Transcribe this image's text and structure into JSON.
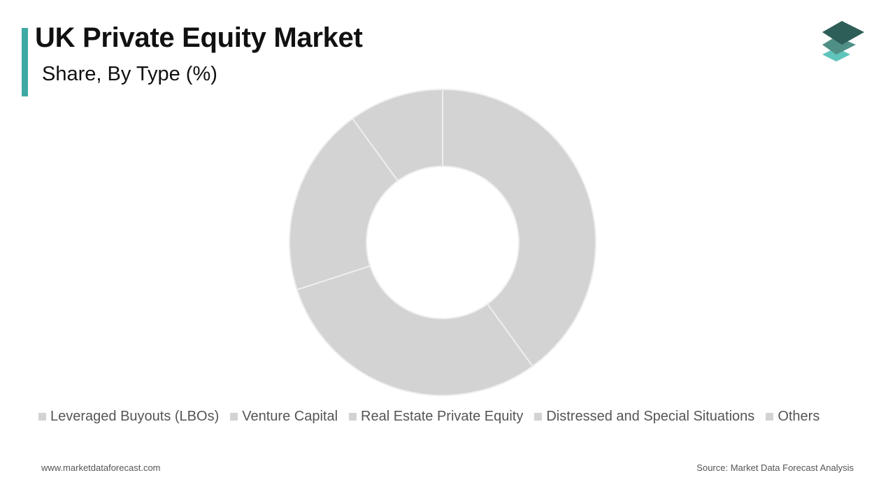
{
  "header": {
    "title": "UK Private Equity Market",
    "subtitle": "Share, By Type (%)",
    "accent_color": "#3fa9a4"
  },
  "logo": {
    "icon": "stacked-layers-logo",
    "colors": [
      "#2e5e58",
      "#4f8f86",
      "#5fc4bb"
    ]
  },
  "chart_data": {
    "type": "pie",
    "donut": true,
    "title": "",
    "slice_color": "#d4d3d4",
    "separator_color": "#eeeeee",
    "categories": [
      "Leveraged Buyouts (LBOs)",
      "Venture Capital",
      "Real Estate Private Equity",
      "Distressed and Special Situations",
      "Others"
    ],
    "values": [
      40,
      30,
      20,
      0,
      10
    ],
    "legend_position": "bottom"
  },
  "legend": {
    "items": [
      "Leveraged Buyouts (LBOs)",
      "Venture Capital",
      "Real Estate Private Equity",
      "Distressed and Special Situations",
      "Others"
    ],
    "swatch_color": "#d4d3d4"
  },
  "footer": {
    "website": "www.marketdataforecast.com",
    "source": "Source: Market Data Forecast Analysis"
  }
}
